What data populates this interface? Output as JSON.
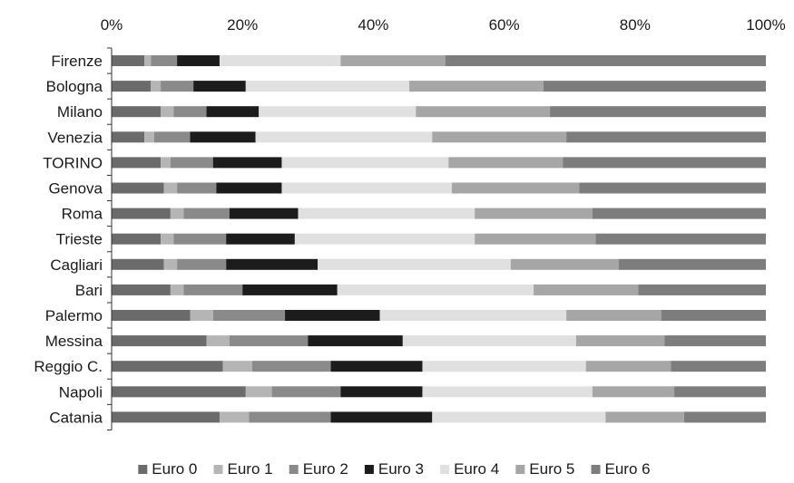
{
  "chart_data": {
    "type": "bar",
    "orientation": "horizontal",
    "stacked": "percent",
    "categories": [
      "Firenze",
      "Bologna",
      "Milano",
      "Venezia",
      "TORINO",
      "Genova",
      "Roma",
      "Trieste",
      "Cagliari",
      "Bari",
      "Palermo",
      "Messina",
      "Reggio C.",
      "Napoli",
      "Catania"
    ],
    "x_ticks": [
      "0%",
      "20%",
      "40%",
      "60%",
      "80%",
      "100%"
    ],
    "xlim": [
      0,
      100
    ],
    "axis_position": "top",
    "grid": false,
    "legend_position": "bottom",
    "series": [
      {
        "name": "Euro 0",
        "color": "#6b6b6b",
        "values": [
          5.0,
          6.0,
          7.5,
          5.0,
          7.5,
          8.0,
          9.0,
          7.5,
          8.0,
          9.0,
          12.0,
          14.5,
          17.0,
          20.5,
          16.5
        ]
      },
      {
        "name": "Euro 1",
        "color": "#b5b5b5",
        "values": [
          1.0,
          1.5,
          2.0,
          1.5,
          1.5,
          2.0,
          2.0,
          2.0,
          2.0,
          2.0,
          3.5,
          3.5,
          4.5,
          4.0,
          4.5
        ]
      },
      {
        "name": "Euro 2",
        "color": "#8a8a8a",
        "values": [
          4.0,
          5.0,
          5.0,
          5.5,
          6.5,
          6.0,
          7.0,
          8.0,
          7.5,
          9.0,
          11.0,
          12.0,
          12.0,
          10.5,
          12.5
        ]
      },
      {
        "name": "Euro 3",
        "color": "#1c1c1c",
        "values": [
          6.5,
          8.0,
          8.0,
          10.0,
          10.5,
          10.0,
          10.5,
          10.5,
          14.0,
          14.5,
          14.5,
          14.5,
          14.0,
          12.5,
          15.5
        ]
      },
      {
        "name": "Euro 4",
        "color": "#e0e0e0",
        "values": [
          18.5,
          25.0,
          24.0,
          27.0,
          25.5,
          26.0,
          27.0,
          27.5,
          29.5,
          30.0,
          28.5,
          26.5,
          25.0,
          26.0,
          26.5
        ]
      },
      {
        "name": "Euro 5",
        "color": "#a6a6a6",
        "values": [
          16.0,
          20.5,
          20.5,
          20.5,
          17.5,
          19.5,
          18.0,
          18.5,
          16.5,
          16.0,
          14.5,
          13.5,
          13.0,
          12.5,
          12.0
        ]
      },
      {
        "name": "Euro 6",
        "color": "#7d7d7d",
        "values": [
          49.0,
          34.0,
          33.0,
          30.5,
          31.0,
          28.5,
          26.5,
          26.0,
          22.5,
          19.5,
          16.0,
          15.5,
          14.5,
          14.0,
          12.5
        ]
      }
    ]
  }
}
